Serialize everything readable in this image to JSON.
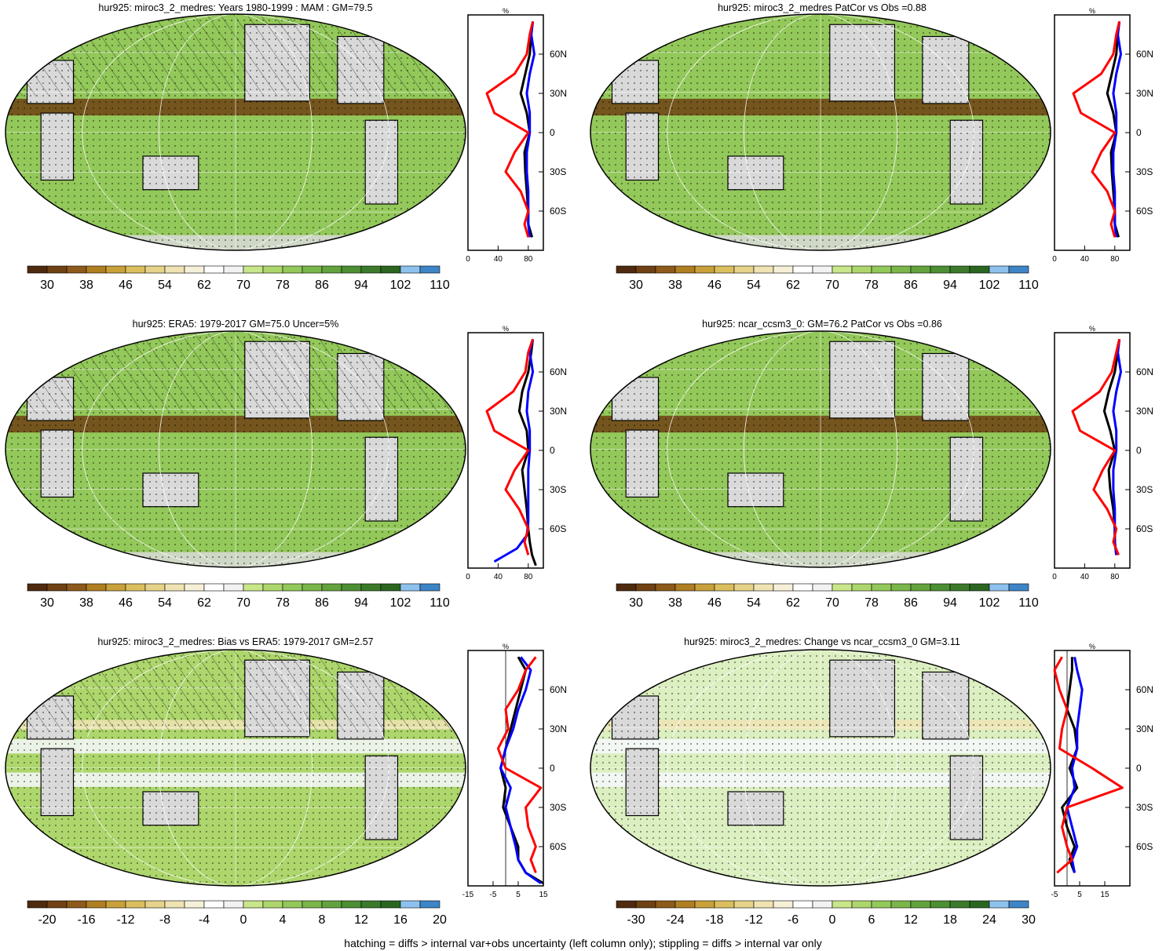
{
  "figure": {
    "footer": "hatching = diffs > internal var+obs uncertainty (left column only); stippling = diffs > internal var only",
    "profile_unit": "%",
    "lat_labels": [
      "60N",
      "30N",
      "0",
      "30S",
      "60S"
    ],
    "colors": {
      "obs_line": "#ff0000",
      "model_line": "#0000ff",
      "ref_line": "#000000",
      "land_missing": "#d9d9d9"
    }
  },
  "chart_data": [
    {
      "type": "heatmap",
      "title": "hur925: miroc3_2_medres: Years 1980-1999 : MAM : GM=79.5",
      "colorbar": {
        "type": "abs",
        "tick_labels": [
          "30",
          "38",
          "46",
          "54",
          "62",
          "70",
          "78",
          "86",
          "94",
          "102",
          "110"
        ]
      },
      "profile": {
        "x_ticks": [
          "0",
          "40",
          "80"
        ],
        "xlim": [
          0,
          100
        ],
        "series": [
          {
            "color": "#000000",
            "lat": [
              -80,
              -70,
              -60,
              -45,
              -30,
              -15,
              0,
              15,
              30,
              45,
              60,
              75,
              85
            ],
            "values": [
              85,
              80,
              80,
              78,
              76,
              75,
              82,
              78,
              70,
              76,
              82,
              84,
              86
            ]
          },
          {
            "color": "#0000ff",
            "lat": [
              -80,
              -70,
              -60,
              -45,
              -30,
              -15,
              0,
              15,
              30,
              45,
              60,
              75,
              85
            ],
            "values": [
              82,
              80,
              80,
              80,
              78,
              78,
              82,
              82,
              78,
              82,
              88,
              84,
              86
            ]
          },
          {
            "color": "#ff0000",
            "lat": [
              -80,
              -70,
              -60,
              -45,
              -30,
              -15,
              0,
              15,
              30,
              45,
              60,
              75,
              85
            ],
            "values": [
              80,
              75,
              80,
              70,
              50,
              62,
              80,
              35,
              25,
              62,
              78,
              82,
              86
            ]
          }
        ]
      }
    },
    {
      "type": "heatmap",
      "title": "hur925: miroc3_2_medres PatCor vs Obs =0.88",
      "colorbar": {
        "type": "abs",
        "tick_labels": [
          "30",
          "38",
          "46",
          "54",
          "62",
          "70",
          "78",
          "86",
          "94",
          "102",
          "110"
        ]
      },
      "profile": {
        "x_ticks": [
          "0",
          "40",
          "80"
        ],
        "xlim": [
          0,
          100
        ],
        "series": [
          {
            "color": "#000000",
            "lat": [
              -80,
              -70,
              -60,
              -45,
              -30,
              -15,
              0,
              15,
              30,
              45,
              60,
              75,
              85
            ],
            "values": [
              85,
              80,
              80,
              78,
              76,
              75,
              82,
              78,
              70,
              76,
              82,
              84,
              86
            ]
          },
          {
            "color": "#0000ff",
            "lat": [
              -80,
              -70,
              -60,
              -45,
              -30,
              -15,
              0,
              15,
              30,
              45,
              60,
              75,
              85
            ],
            "values": [
              82,
              80,
              80,
              80,
              78,
              78,
              82,
              82,
              78,
              82,
              88,
              84,
              86
            ]
          },
          {
            "color": "#ff0000",
            "lat": [
              -80,
              -70,
              -60,
              -45,
              -30,
              -15,
              0,
              15,
              30,
              45,
              60,
              75,
              85
            ],
            "values": [
              80,
              75,
              80,
              70,
              50,
              62,
              80,
              35,
              25,
              62,
              78,
              82,
              86
            ]
          }
        ]
      }
    },
    {
      "type": "heatmap",
      "title": "hur925: ERA5: 1979-2017 GM=75.0 Uncer=5%",
      "colorbar": {
        "type": "abs",
        "tick_labels": [
          "30",
          "38",
          "46",
          "54",
          "62",
          "70",
          "78",
          "86",
          "94",
          "102",
          "110"
        ]
      },
      "profile": {
        "x_ticks": [
          "0",
          "40",
          "80"
        ],
        "xlim": [
          0,
          100
        ],
        "series": [
          {
            "color": "#000000",
            "lat": [
              -88,
              -80,
              -70,
              -60,
              -45,
              -30,
              -15,
              0,
              15,
              30,
              45,
              60,
              75,
              85
            ],
            "values": [
              90,
              85,
              82,
              80,
              78,
              75,
              72,
              80,
              78,
              68,
              72,
              80,
              84,
              86
            ]
          },
          {
            "color": "#0000ff",
            "lat": [
              -85,
              -75,
              -65,
              -55,
              -45,
              -30,
              -15,
              0,
              15,
              30,
              45,
              60,
              75,
              85
            ],
            "values": [
              35,
              65,
              78,
              80,
              80,
              80,
              80,
              82,
              82,
              78,
              80,
              86,
              82,
              86
            ]
          },
          {
            "color": "#ff0000",
            "lat": [
              -80,
              -70,
              -60,
              -45,
              -30,
              -15,
              0,
              15,
              30,
              45,
              60,
              75,
              85
            ],
            "values": [
              80,
              75,
              80,
              68,
              50,
              62,
              80,
              35,
              25,
              60,
              76,
              80,
              86
            ]
          }
        ]
      }
    },
    {
      "type": "heatmap",
      "title": "hur925: ncar_ccsm3_0: GM=76.2 PatCor vs Obs =0.86",
      "colorbar": {
        "type": "abs",
        "tick_labels": [
          "30",
          "38",
          "46",
          "54",
          "62",
          "70",
          "78",
          "86",
          "94",
          "102",
          "110"
        ]
      },
      "profile": {
        "x_ticks": [
          "0",
          "40",
          "80"
        ],
        "xlim": [
          0,
          100
        ],
        "series": [
          {
            "color": "#000000",
            "lat": [
              -80,
              -70,
              -60,
              -45,
              -30,
              -15,
              0,
              15,
              30,
              45,
              60,
              75,
              85
            ],
            "values": [
              82,
              80,
              80,
              78,
              74,
              72,
              80,
              74,
              66,
              72,
              80,
              84,
              86
            ]
          },
          {
            "color": "#0000ff",
            "lat": [
              -80,
              -70,
              -60,
              -45,
              -30,
              -15,
              0,
              15,
              30,
              45,
              60,
              75,
              85
            ],
            "values": [
              82,
              80,
              80,
              80,
              78,
              78,
              82,
              82,
              78,
              82,
              88,
              84,
              86
            ]
          },
          {
            "color": "#ff0000",
            "lat": [
              -80,
              -70,
              -60,
              -45,
              -30,
              -15,
              0,
              15,
              30,
              45,
              60,
              75,
              85
            ],
            "values": [
              85,
              78,
              82,
              70,
              52,
              64,
              80,
              34,
              24,
              60,
              76,
              82,
              86
            ]
          }
        ]
      }
    },
    {
      "type": "heatmap",
      "title": "hur925: miroc3_2_medres: Bias vs ERA5: 1979-2017 GM=2.57",
      "colorbar": {
        "type": "diff",
        "tick_labels": [
          "-20",
          "-16",
          "-12",
          "-8",
          "-4",
          "0",
          "4",
          "8",
          "12",
          "16",
          "20"
        ]
      },
      "profile": {
        "x_ticks": [
          "-15",
          "-5",
          "5",
          "15"
        ],
        "xlim": [
          -15,
          15
        ],
        "series": [
          {
            "color": "#000000",
            "lat": [
              -88,
              -80,
              -70,
              -60,
              -45,
              -30,
              -15,
              0,
              15,
              30,
              45,
              60,
              75,
              85
            ],
            "values": [
              15,
              8,
              5,
              5,
              2,
              -1,
              0,
              -2,
              0,
              2,
              4,
              6,
              8,
              5
            ]
          },
          {
            "color": "#0000ff",
            "lat": [
              -88,
              -80,
              -70,
              -60,
              -45,
              -30,
              -15,
              0,
              15,
              30,
              45,
              60,
              75,
              85
            ],
            "values": [
              14,
              8,
              5,
              4,
              2,
              0,
              2,
              -2,
              0,
              3,
              5,
              8,
              10,
              6
            ]
          },
          {
            "color": "#ff0000",
            "lat": [
              -80,
              -70,
              -60,
              -45,
              -30,
              -15,
              0,
              15,
              30,
              45,
              60,
              75,
              85
            ],
            "values": [
              12,
              10,
              12,
              9,
              8,
              14,
              0,
              -3,
              1,
              0,
              5,
              8,
              12
            ]
          }
        ]
      }
    },
    {
      "type": "heatmap",
      "title": "hur925: miroc3_2_medres: Change vs ncar_ccsm3_0 GM=3.11",
      "colorbar": {
        "type": "diff",
        "tick_labels": [
          "-30",
          "-24",
          "-18",
          "-12",
          "-6",
          "0",
          "6",
          "12",
          "18",
          "24",
          "30"
        ]
      },
      "profile": {
        "x_ticks": [
          "-5",
          "5",
          "15"
        ],
        "xlim": [
          -5,
          25
        ],
        "series": [
          {
            "color": "#000000",
            "lat": [
              -80,
              -70,
              -60,
              -45,
              -30,
              -15,
              0,
              15,
              30,
              45,
              60,
              75,
              85
            ],
            "values": [
              3,
              1,
              3,
              0,
              -2,
              4,
              1,
              4,
              3,
              0,
              1,
              2,
              2
            ]
          },
          {
            "color": "#0000ff",
            "lat": [
              -80,
              -70,
              -60,
              -45,
              -30,
              -15,
              0,
              15,
              30,
              45,
              60,
              75,
              85
            ],
            "values": [
              3,
              2,
              4,
              2,
              0,
              3,
              2,
              4,
              4,
              5,
              6,
              4,
              3
            ]
          },
          {
            "color": "#ff0000",
            "lat": [
              -80,
              -70,
              -60,
              -45,
              -30,
              -15,
              0,
              15,
              30,
              45,
              60,
              75,
              85
            ],
            "values": [
              -4,
              2,
              0,
              -2,
              0,
              22,
              10,
              -3,
              -2,
              0,
              -3,
              -5,
              -2
            ]
          }
        ]
      }
    }
  ]
}
